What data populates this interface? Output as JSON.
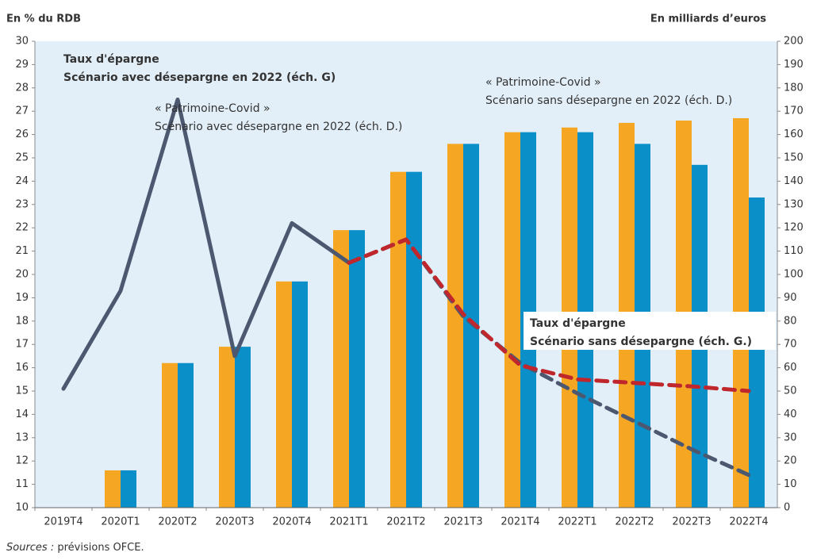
{
  "chart_data": {
    "type": "combo",
    "y_axis_label": "En % du RDB",
    "y2_axis_label": "En milliards d’euros",
    "source_label": "Sources :",
    "source_text": "prévisions OFCE.",
    "background": "#e3eff8",
    "categories": [
      "2019T4",
      "2020T1",
      "2020T2",
      "2020T3",
      "2020T4",
      "2021T1",
      "2021T2",
      "2021T3",
      "2021T4",
      "2022T1",
      "2022T2",
      "2022T3",
      "2022T4"
    ],
    "ylim": [
      10,
      30
    ],
    "yticks": [
      10,
      11,
      12,
      13,
      14,
      15,
      16,
      17,
      18,
      19,
      20,
      21,
      22,
      23,
      24,
      25,
      26,
      27,
      28,
      29,
      30
    ],
    "y2lim": [
      0,
      200
    ],
    "y2ticks": [
      0,
      10,
      20,
      30,
      40,
      50,
      60,
      70,
      80,
      90,
      100,
      110,
      120,
      130,
      140,
      150,
      160,
      170,
      180,
      190,
      200
    ],
    "series": [
      {
        "kind": "bar",
        "axis": "y2",
        "color": "#f5a623",
        "values": [
          0,
          16,
          62,
          69,
          97,
          119,
          144,
          156,
          161,
          163,
          165,
          166,
          167
        ]
      },
      {
        "kind": "bar",
        "axis": "y2",
        "color": "#0a8fc9",
        "values": [
          0,
          16,
          62,
          69,
          97,
          119,
          144,
          156,
          161,
          161,
          156,
          147,
          133
        ]
      },
      {
        "kind": "line",
        "axis": "y",
        "color": "#4b5870",
        "style": "solid",
        "values": [
          15.1,
          19.3,
          27.5,
          16.5,
          22.2,
          20.5,
          null,
          null,
          null,
          null,
          null,
          null,
          null
        ]
      },
      {
        "kind": "line",
        "axis": "y",
        "color": "#4b5870",
        "style": "dashed",
        "values": [
          null,
          null,
          null,
          null,
          null,
          20.5,
          21.5,
          18.2,
          16.2,
          14.9,
          13.7,
          12.5,
          11.4
        ]
      },
      {
        "kind": "line",
        "axis": "y",
        "color": "#c0272d",
        "style": "dashed",
        "values": [
          null,
          null,
          null,
          null,
          null,
          20.5,
          21.5,
          18.3,
          16.1,
          15.5,
          15.35,
          15.2,
          15.0
        ]
      }
    ],
    "annotations": [
      {
        "color": "#4b5870",
        "bold": true,
        "lines": [
          "Taux d'épargne",
          "Scénario avec désepargne en 2022 (éch. G)"
        ]
      },
      {
        "color": "#0a8fc9",
        "bold": false,
        "lines": [
          "« Patrimoine-Covid »",
          "Scénario avec désepargne en 2022  (éch. D.)"
        ]
      },
      {
        "color": "#f5a623",
        "bold": false,
        "lines": [
          "« Patrimoine-Covid »",
          "Scénario sans désepargne en 2022  (éch. D.)"
        ]
      },
      {
        "color": "#c0272d",
        "bold": true,
        "boxed": true,
        "lines": [
          "Taux d'épargne",
          "Scénario sans désepargne (éch. G.)"
        ]
      }
    ]
  }
}
